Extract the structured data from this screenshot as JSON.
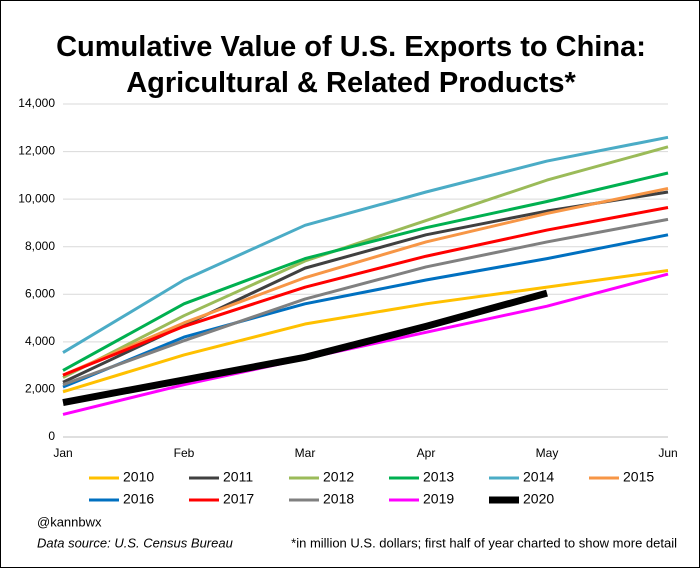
{
  "chart_data": {
    "type": "line",
    "title": "Cumulative Value of U.S. Exports to China: Agricultural & Related Products*",
    "credit": "@kannbwx",
    "source": "Data source: U.S. Census Bureau",
    "note": "*in million U.S. dollars; first half of year charted to show more detail",
    "categories": [
      "Jan",
      "Feb",
      "Mar",
      "Apr",
      "May",
      "Jun"
    ],
    "ylim": [
      0,
      14000
    ],
    "yticks": [
      0,
      {
        "value": 2000,
        "label": "2,000"
      },
      {
        "value": 4000,
        "label": "4,000"
      },
      {
        "value": 6000,
        "label": "6,000"
      },
      {
        "value": 8000,
        "label": "8,000"
      },
      {
        "value": 10000,
        "label": "10,000"
      },
      {
        "value": 12000,
        "label": "12,000"
      },
      {
        "value": 14000,
        "label": "14,000"
      }
    ],
    "grid": true,
    "series": [
      {
        "name": "2010",
        "color": "#ffc000",
        "values": [
          1900,
          3450,
          4750,
          5600,
          6300,
          7000
        ]
      },
      {
        "name": "2011",
        "color": "#404040",
        "values": [
          2300,
          4700,
          7100,
          8500,
          9500,
          10300
        ]
      },
      {
        "name": "2012",
        "color": "#9bbb59",
        "values": [
          2500,
          5100,
          7400,
          9100,
          10800,
          12200
        ]
      },
      {
        "name": "2013",
        "color": "#00b050",
        "values": [
          2800,
          5600,
          7500,
          8800,
          9900,
          11100
        ]
      },
      {
        "name": "2014",
        "color": "#4bacc6",
        "values": [
          3550,
          6600,
          8900,
          10300,
          11600,
          12600
        ]
      },
      {
        "name": "2015",
        "color": "#f79646",
        "values": [
          2600,
          4800,
          6700,
          8200,
          9400,
          10450
        ]
      },
      {
        "name": "2016",
        "color": "#0070c0",
        "values": [
          2100,
          4200,
          5600,
          6600,
          7500,
          8500
        ]
      },
      {
        "name": "2017",
        "color": "#ff0000",
        "values": [
          2600,
          4650,
          6300,
          7600,
          8700,
          9650
        ]
      },
      {
        "name": "2018",
        "color": "#808080",
        "values": [
          2200,
          4050,
          5800,
          7150,
          8200,
          9150
        ]
      },
      {
        "name": "2019",
        "color": "#ff00ff",
        "values": [
          950,
          2200,
          3300,
          4400,
          5500,
          6850
        ]
      },
      {
        "name": "2020",
        "color": "#000000",
        "values": [
          1450,
          2400,
          3350,
          4650,
          6050,
          null
        ]
      }
    ]
  }
}
